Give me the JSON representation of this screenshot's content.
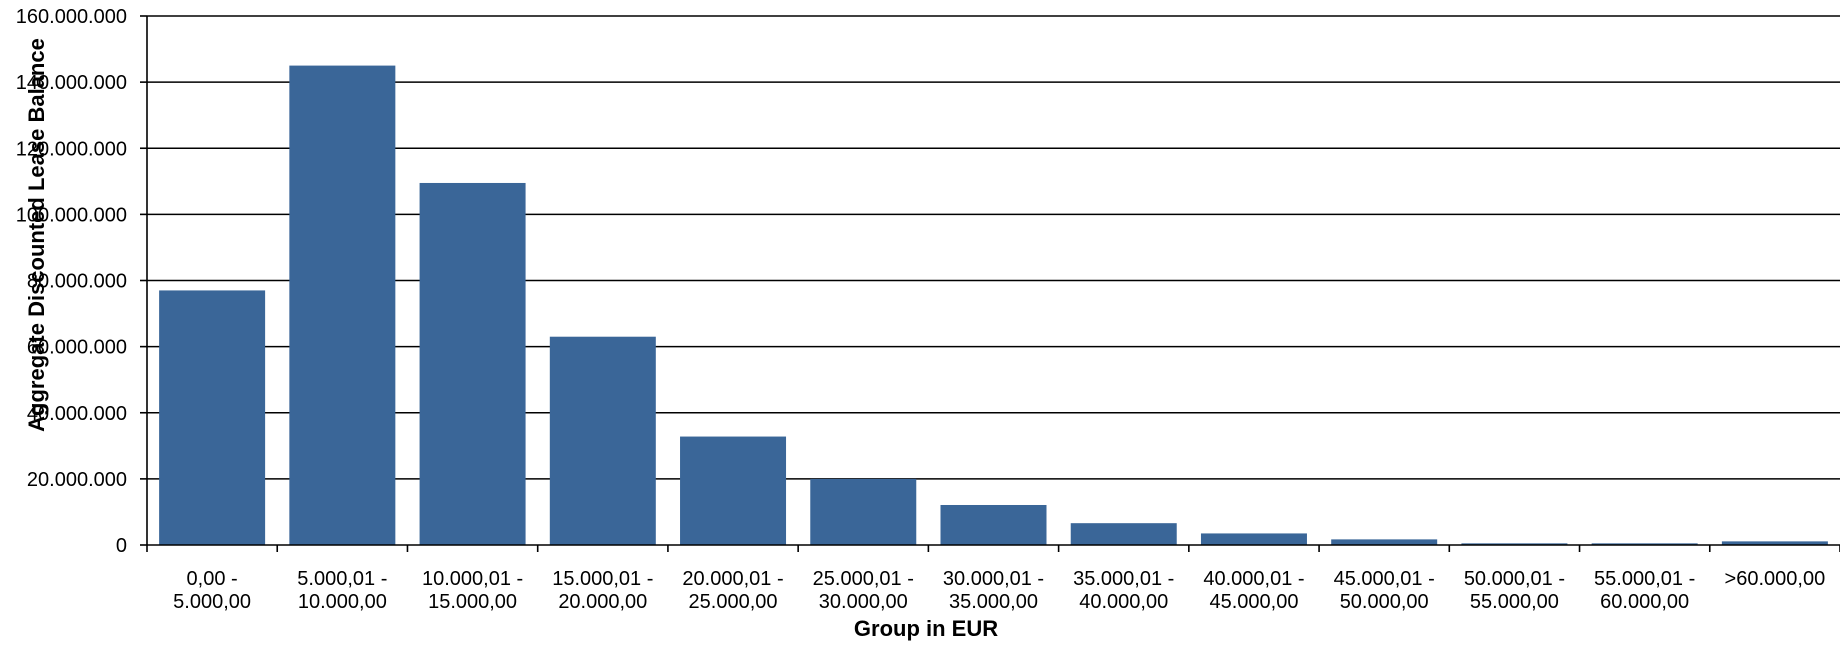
{
  "chart_data": {
    "type": "bar",
    "title": "",
    "xlabel": "Group in EUR",
    "ylabel": "Aggregate Discounted Lease Balance",
    "ylim": [
      0,
      160000000
    ],
    "yticks": [
      0,
      20000000,
      40000000,
      60000000,
      80000000,
      100000000,
      120000000,
      140000000,
      160000000
    ],
    "ytick_labels": [
      "0",
      "20.000.000",
      "40.000.000",
      "60.000.000",
      "80.000.000",
      "100.000.000",
      "120.000.000",
      "140.000.000",
      "160.000.000"
    ],
    "grid": true,
    "bar_color": "#3a6698",
    "categories": [
      [
        "0,00 -",
        "5.000,00"
      ],
      [
        "5.000,01 -",
        "10.000,00"
      ],
      [
        "10.000,01 -",
        "15.000,00"
      ],
      [
        "15.000,01 -",
        "20.000,00"
      ],
      [
        "20.000,01 -",
        "25.000,00"
      ],
      [
        "25.000,01 -",
        "30.000,00"
      ],
      [
        "30.000,01 -",
        "35.000,00"
      ],
      [
        "35.000,01 -",
        "40.000,00"
      ],
      [
        "40.000,01 -",
        "45.000,00"
      ],
      [
        "45.000,01 -",
        "50.000,00"
      ],
      [
        "50.000,01 -",
        "55.000,00"
      ],
      [
        "55.000,01 -",
        "60.000,00"
      ],
      [
        ">60.000,00"
      ]
    ],
    "values": [
      77000000,
      145000000,
      109500000,
      63000000,
      32800000,
      20000000,
      12100000,
      6600000,
      3500000,
      1700000,
      500000,
      500000,
      1100000
    ]
  }
}
